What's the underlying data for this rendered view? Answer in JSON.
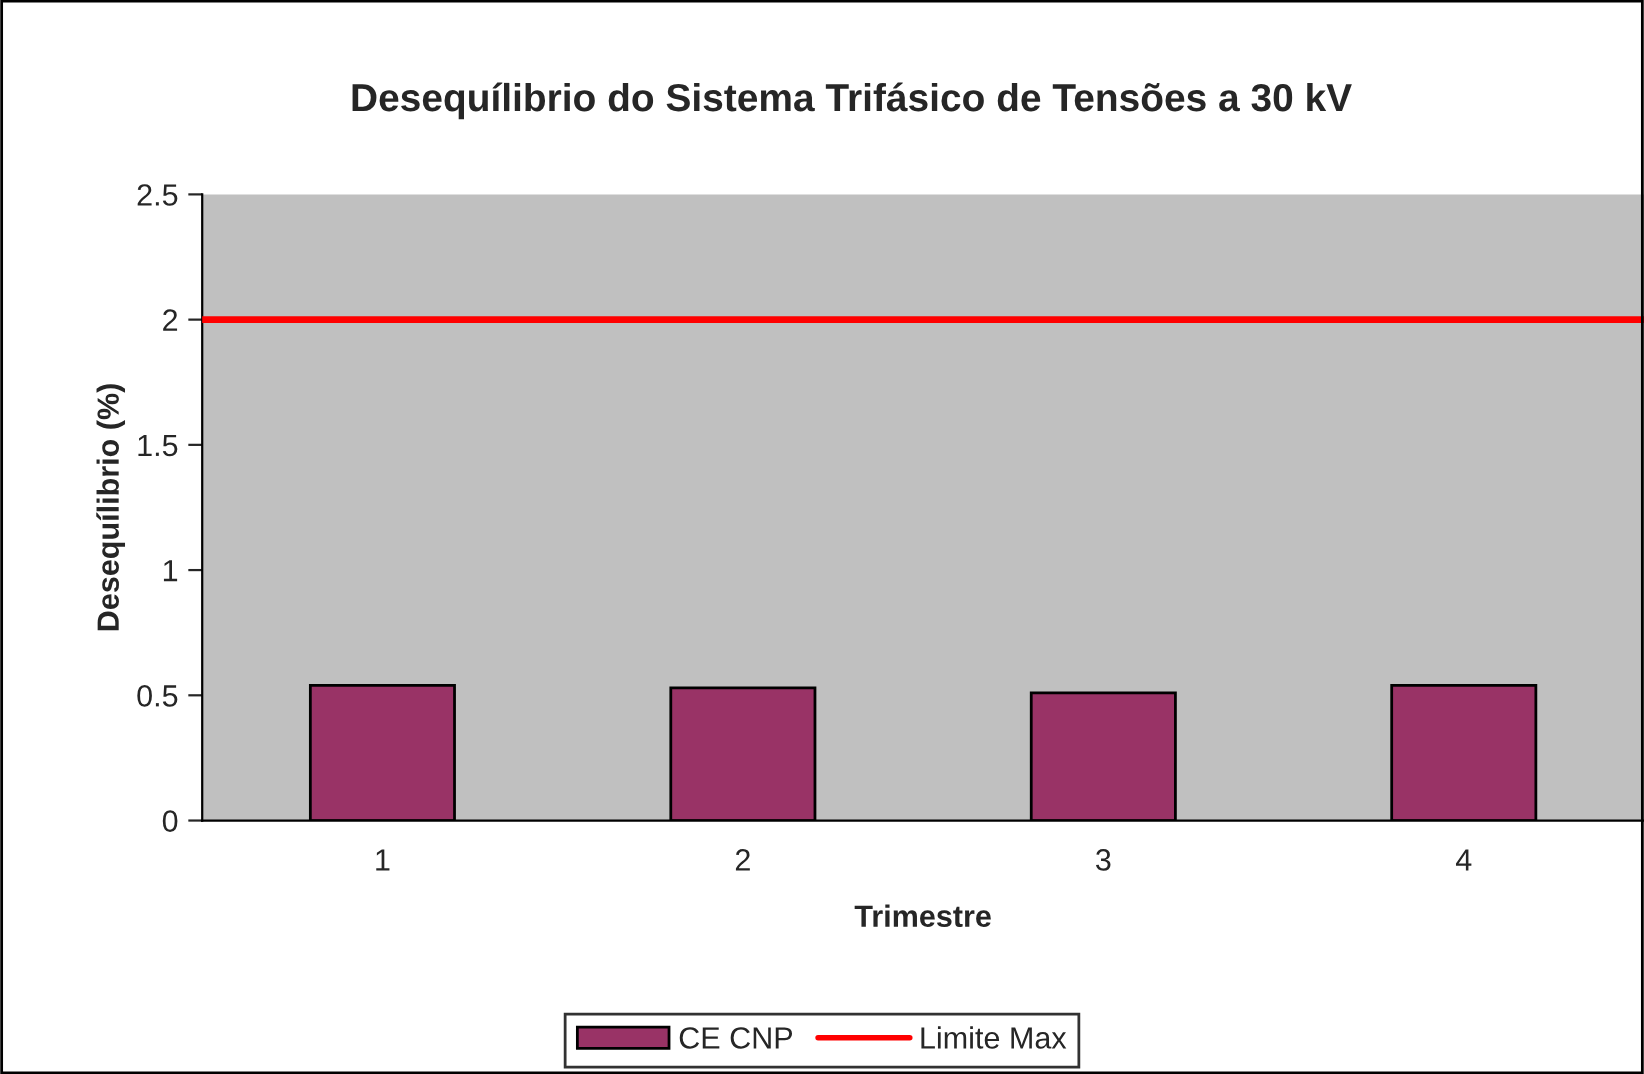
{
  "chart_data": {
    "type": "bar",
    "title": "Desequílibrio do Sistema Trifásico de Tensões a 30 kV",
    "xlabel": "Trimestre",
    "ylabel": "Desequílibrio (%)",
    "categories": [
      "1",
      "2",
      "3",
      "4"
    ],
    "series": [
      {
        "name": "CE CNP",
        "color": "#993366",
        "values": [
          0.54,
          0.53,
          0.51,
          0.54
        ]
      }
    ],
    "ref_lines": [
      {
        "axis": "y",
        "value": 2,
        "label": "Limite Max",
        "color": "#ff0000",
        "line_style": "solid"
      }
    ],
    "ylim": [
      0,
      2.5
    ],
    "yticks": [
      0,
      0.5,
      1,
      1.5,
      2,
      2.5
    ],
    "grid": false,
    "legend": "bottom"
  }
}
